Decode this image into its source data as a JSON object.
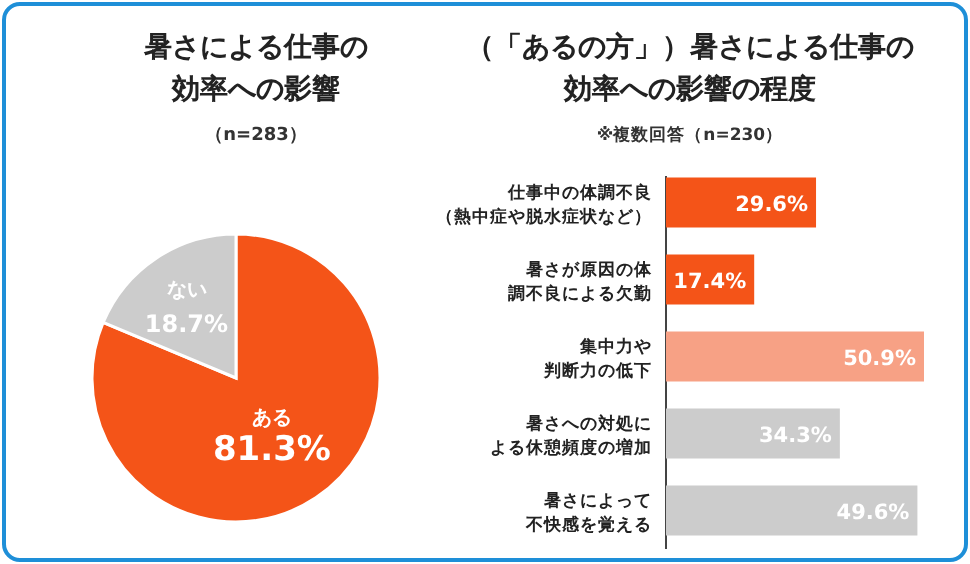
{
  "chart_data": [
    {
      "type": "pie",
      "title": "暑さによる仕事の効率への影響",
      "subtitle": "（n=283）",
      "categories": [
        "ある",
        "ない"
      ],
      "values": [
        81.3,
        18.7
      ],
      "colors": [
        "#f45418",
        "#cccccc"
      ],
      "value_labels": [
        "81.3%",
        "18.7%"
      ]
    },
    {
      "type": "bar",
      "orientation": "horizontal",
      "title": "（「あるの方」）暑さによる仕事の効率への影響の程度",
      "subtitle": "※複数回答（n=230）",
      "categories": [
        "仕事中の体調不良（熱中症や脱水症状など）",
        "暑さが原因の体調不良による欠勤",
        "集中力や判断力の低下",
        "暑さへの対処による休憩頻度の増加",
        "暑さによって不快感を覚える"
      ],
      "values": [
        29.6,
        17.4,
        50.9,
        34.3,
        49.6
      ],
      "colors": [
        "#f45418",
        "#f45418",
        "#f7a185",
        "#cccccc",
        "#cccccc"
      ],
      "value_labels": [
        "29.6%",
        "17.4%",
        "50.9%",
        "34.3%",
        "49.6%"
      ]
    }
  ]
}
